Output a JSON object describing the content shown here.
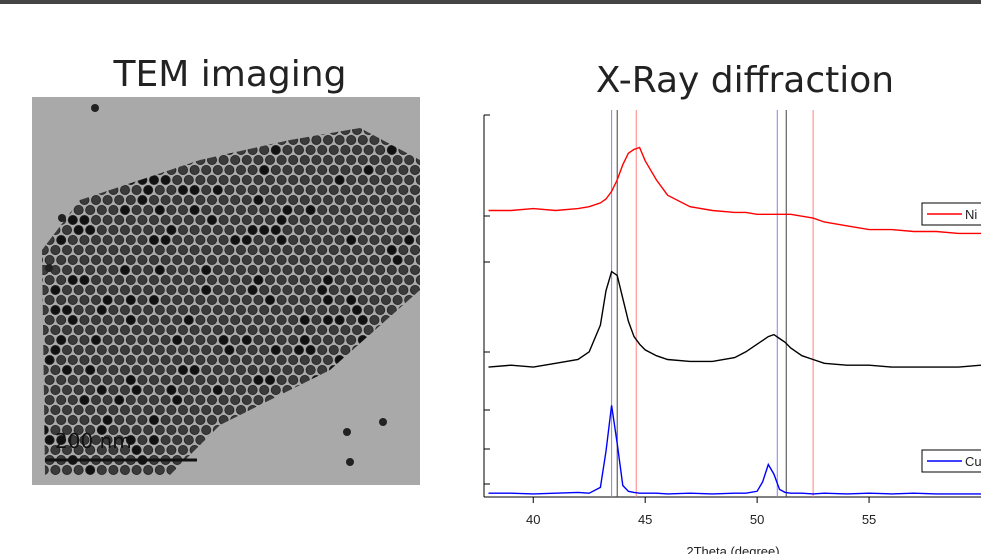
{
  "tem_panel": {
    "title": "TEM imaging",
    "scale_bar": "200 nm"
  },
  "chart_data": {
    "type": "line",
    "title": "X-Ray diffraction",
    "x_label": "2Theta (degree)",
    "x": [
      38,
      39,
      40,
      41,
      42,
      42.5,
      43,
      43.25,
      43.5,
      43.75,
      44,
      44.25,
      44.5,
      44.75,
      45,
      45.5,
      46,
      47,
      48,
      49,
      49.5,
      50,
      50.25,
      50.5,
      50.75,
      51,
      51.25,
      51.5,
      52,
      52.5,
      53,
      54,
      55,
      56,
      57,
      58,
      59,
      60
    ],
    "series": [
      {
        "name": "Ni",
        "color": "#ff0000",
        "values": [
          75,
          75,
          75.5,
          75,
          75.5,
          76,
          77,
          78,
          80,
          83,
          87,
          90,
          91,
          91.5,
          88,
          83,
          79,
          76,
          75,
          74.5,
          74.5,
          74,
          74,
          74,
          74,
          74,
          74,
          74,
          73.5,
          73,
          72,
          71,
          70,
          70,
          69.5,
          69.5,
          69,
          69
        ]
      },
      {
        "color": "#000000",
        "values": [
          34,
          34.5,
          34,
          35,
          36,
          38,
          45,
          54,
          59,
          58,
          52,
          46,
          42,
          40,
          38.5,
          37,
          36,
          35.5,
          35.5,
          36.5,
          38,
          40,
          41,
          42,
          42.5,
          41.5,
          40.5,
          39,
          37,
          36,
          35,
          34.5,
          34.5,
          34,
          34,
          34,
          34,
          34.5
        ]
      },
      {
        "name": "Cu",
        "color": "#0000ff",
        "values": [
          1,
          1,
          0.8,
          1,
          1.2,
          1,
          2.5,
          12,
          24,
          14,
          3,
          1.5,
          1.2,
          1,
          1,
          1,
          0.8,
          1,
          0.8,
          1,
          1,
          1.5,
          4,
          8.5,
          6,
          2,
          1.2,
          1,
          1,
          0.8,
          1,
          0.8,
          1,
          0.8,
          1,
          0.8,
          0.8,
          0.8
        ]
      }
    ],
    "reference_lines": [
      {
        "x": 43.5,
        "color": "#8080ff"
      },
      {
        "x": 43.75,
        "color": "#404040"
      },
      {
        "x": 44.6,
        "color": "#ff8080"
      },
      {
        "x": 50.9,
        "color": "#8080ff"
      },
      {
        "x": 51.3,
        "color": "#404040"
      },
      {
        "x": 52.5,
        "color": "#ff8080"
      }
    ],
    "xlim": [
      37.8,
      60
    ],
    "xticks": [
      40,
      45,
      50,
      55
    ],
    "ylim": [
      0,
      100
    ]
  }
}
